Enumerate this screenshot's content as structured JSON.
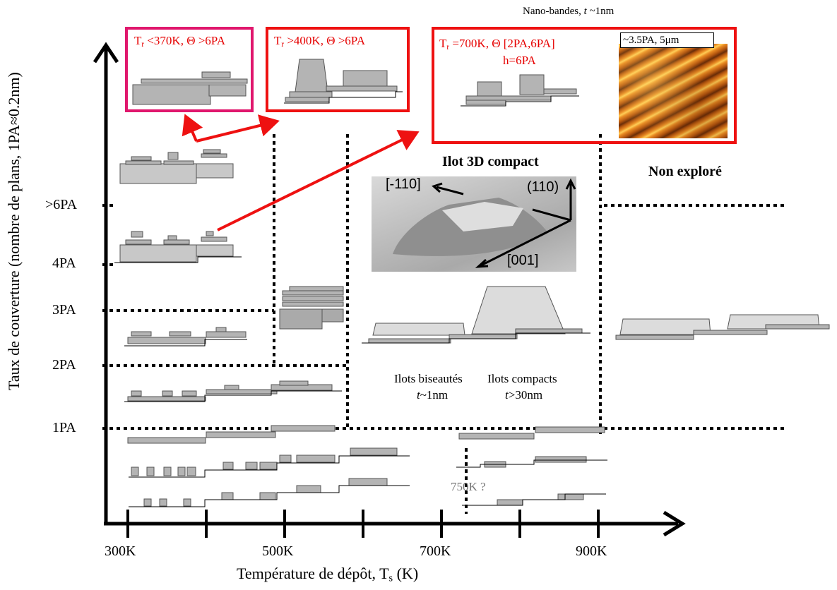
{
  "axes": {
    "x_title": "Température de dépôt, T",
    "x_title_sub": "s",
    "x_title_unit": " (K)",
    "y_title": "Taux de couverture (nombre de plans, 1PA≈0.2nm)",
    "x_ticks": [
      "300K",
      "500K",
      "700K",
      "900K"
    ],
    "y_ticks": [
      "1PA",
      "2PA",
      "3PA",
      "4PA",
      ">6PA"
    ]
  },
  "boxes": {
    "box1": {
      "line1_pre": "T",
      "line1_sub": "r",
      "line1_post": " <370K, Θ >6PA",
      "color": "#e0176d"
    },
    "box2": {
      "line1_pre": "T",
      "line1_sub": "r",
      "line1_post": " >400K, Θ >6PA",
      "color": "#ee1111"
    },
    "box3": {
      "line1_pre": "T",
      "line1_sub": "r",
      "line1_post": " =700K, Θ [2PA,6PA]",
      "line2": "h=6PA",
      "color": "#ee1111"
    },
    "afm_label": "~3.5PA, 5μm",
    "nano_title_pre": "Nano-bandes, ",
    "nano_title_t": "t",
    "nano_title_post": " ~1nm"
  },
  "labels": {
    "ilot3d": "Ilot 3D compact",
    "non_explore": "Non exploré",
    "dir_m110": "[-110]",
    "dir_110": "(110)",
    "dir_001": "[001]",
    "biseautes_1": "Ilots biseautés",
    "biseautes_2_t": "t",
    "biseautes_2_post": "~1nm",
    "compacts_1": "Ilots compacts",
    "compacts_2_t": "t",
    "compacts_2_post": ">30nm",
    "q750": "750K ?"
  }
}
